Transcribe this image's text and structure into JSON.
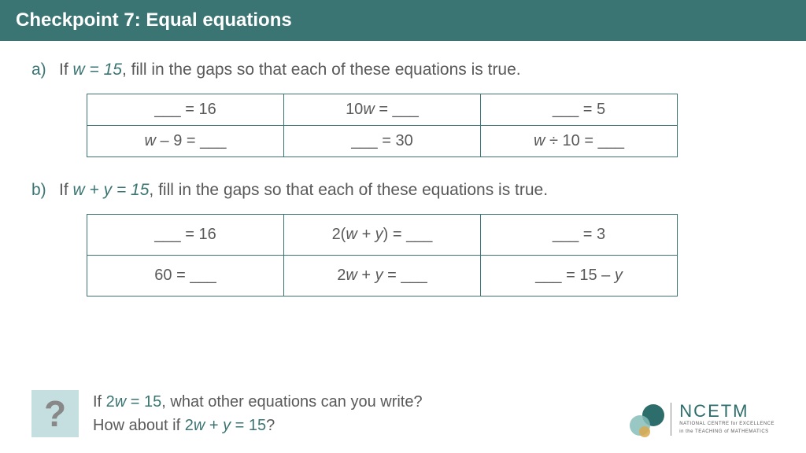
{
  "header": {
    "title": "Checkpoint 7: Equal equations"
  },
  "qa": {
    "label": "a)",
    "pre": "If ",
    "cond": "w = 15",
    "post": ", fill in the gaps so that each of these equations is true.",
    "cells": [
      [
        "___ = 16",
        "10<i>w</i> = ___",
        "___ = 5"
      ],
      [
        "<i>w</i> – 9 = ___",
        "___ = 30",
        "<i>w</i> ÷ 10 = ___"
      ]
    ]
  },
  "qb": {
    "label": "b)",
    "pre": "If ",
    "cond": "w + y = 15",
    "post": ", fill in the gaps so that each of these equations is true.",
    "cells": [
      [
        "___ = 16",
        "2(<i>w + y</i>) = ___",
        "___ = 3"
      ],
      [
        "60 = ___",
        "2<i>w</i> + <i>y</i> = ___",
        "___ = 15 – <i>y</i>"
      ]
    ]
  },
  "footer": {
    "qmark": "?",
    "line1_pre": "If ",
    "line1_cond": "2w = 15",
    "line1_post": ", what other equations can you write?",
    "line2_pre": "How about if ",
    "line2_cond": "2w + y = 15",
    "line2_post": "?"
  },
  "logo": {
    "main": "NCETM",
    "sub1": "NATIONAL CENTRE for EXCELLENCE",
    "sub2": "in the TEACHING of MATHEMATICS"
  },
  "colors": {
    "teal": "#3a7573",
    "body": "#595959",
    "qmark_bg": "#c5dfe0"
  }
}
